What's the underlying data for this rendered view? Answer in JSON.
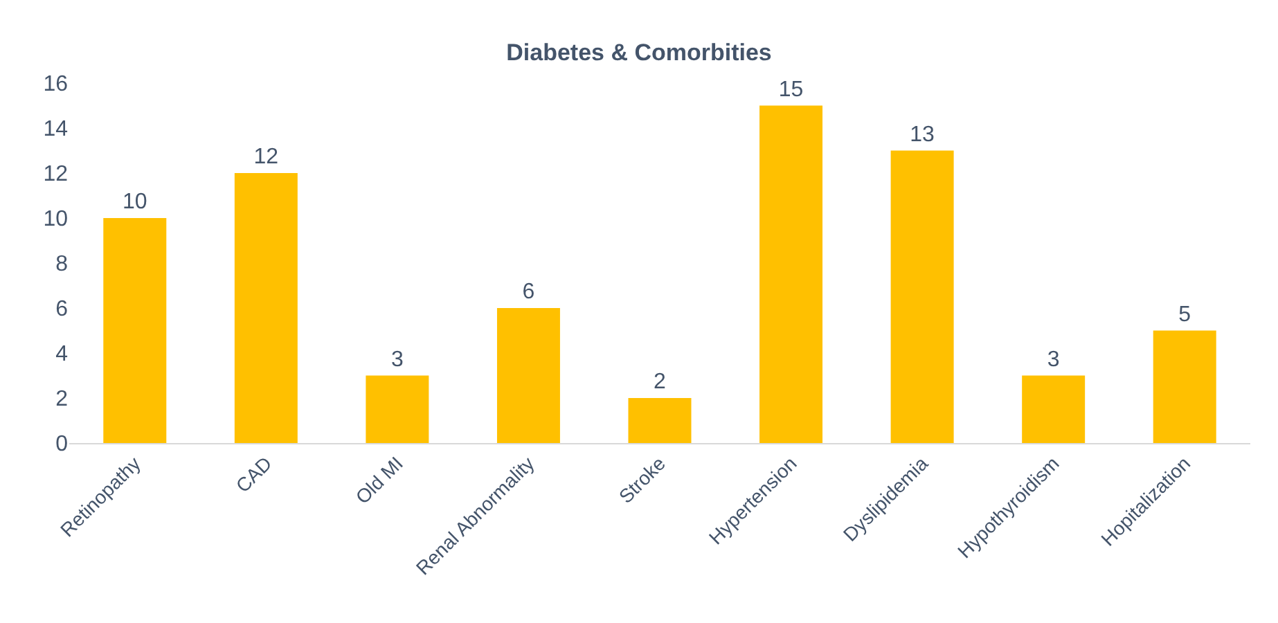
{
  "chart_data": {
    "type": "bar",
    "title": "Diabetes & Comorbities",
    "categories": [
      "Retinopathy",
      "CAD",
      "Old MI",
      "Renal Abnormality",
      "Stroke",
      "Hypertension",
      "Dyslipidemia",
      "Hypothyroidism",
      "Hopitalization"
    ],
    "values": [
      10,
      12,
      3,
      6,
      2,
      15,
      13,
      3,
      5
    ],
    "color": "#ffc000",
    "ylim": [
      0,
      16
    ],
    "yticks": [
      0,
      2,
      4,
      6,
      8,
      10,
      12,
      14,
      16
    ],
    "data_labels": true
  }
}
